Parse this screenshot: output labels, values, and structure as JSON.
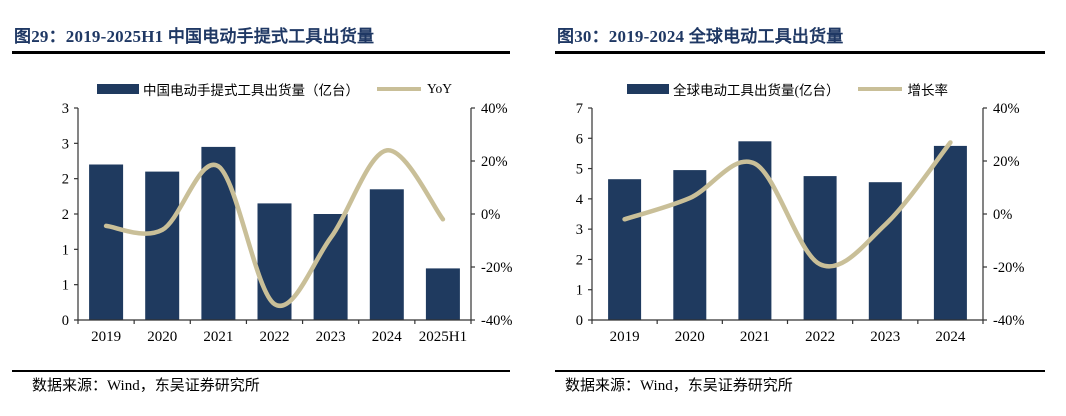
{
  "figures": [
    {
      "title": "图29：2019-2025H1 中国电动手提式工具出货量",
      "source": "数据来源：Wind，东吴证券研究所"
    },
    {
      "title": "图30：2019-2024 全球电动工具出货量",
      "source": "数据来源：Wind，东吴证券研究所"
    }
  ],
  "chart_data": [
    {
      "type": "bar",
      "title": "图29：2019-2025H1 中国电动手提式工具出货量",
      "categories": [
        "2019",
        "2020",
        "2021",
        "2022",
        "2023",
        "2024",
        "2025H1"
      ],
      "series": [
        {
          "name": "中国电动手提式工具出货量（亿台）",
          "type": "bar",
          "axis": "left",
          "values": [
            2.2,
            2.1,
            2.45,
            1.65,
            1.5,
            1.85,
            0.73
          ]
        },
        {
          "name": "YoY",
          "type": "line",
          "axis": "right",
          "values_pct": [
            -4.5,
            -6,
            18,
            -34,
            -9,
            24,
            -2
          ]
        }
      ],
      "left_axis": {
        "min": 0,
        "max": 3,
        "tick_labels": [
          "3",
          "3",
          "2",
          "2",
          "1",
          "1",
          "0"
        ]
      },
      "right_axis": {
        "min": -40,
        "max": 40,
        "tick_labels": [
          "40%",
          "20%",
          "0%",
          "-20%",
          "-40%"
        ]
      },
      "legend_position": "top",
      "grid": false
    },
    {
      "type": "bar",
      "title": "图30：2019-2024 全球电动工具出货量",
      "categories": [
        "2019",
        "2020",
        "2021",
        "2022",
        "2023",
        "2024"
      ],
      "series": [
        {
          "name": "全球电动工具出货量(亿台）",
          "type": "bar",
          "axis": "left",
          "values": [
            4.65,
            4.95,
            5.9,
            4.75,
            4.55,
            5.75
          ]
        },
        {
          "name": "增长率",
          "type": "line",
          "axis": "right",
          "values_pct": [
            -2,
            6,
            19,
            -19,
            -4,
            27
          ]
        }
      ],
      "left_axis": {
        "min": 0,
        "max": 7,
        "tick_labels": [
          "7",
          "6",
          "5",
          "4",
          "3",
          "2",
          "1",
          "0"
        ]
      },
      "right_axis": {
        "min": -40,
        "max": 40,
        "tick_labels": [
          "40%",
          "20%",
          "0%",
          "-20%",
          "-40%"
        ]
      },
      "legend_position": "top",
      "grid": false
    }
  ],
  "colors": {
    "bar": "#1F3A5F",
    "line": "#C9BF98",
    "title": "#1F3864",
    "rule": "#000000",
    "axis": "#333333",
    "text": "#000000"
  }
}
